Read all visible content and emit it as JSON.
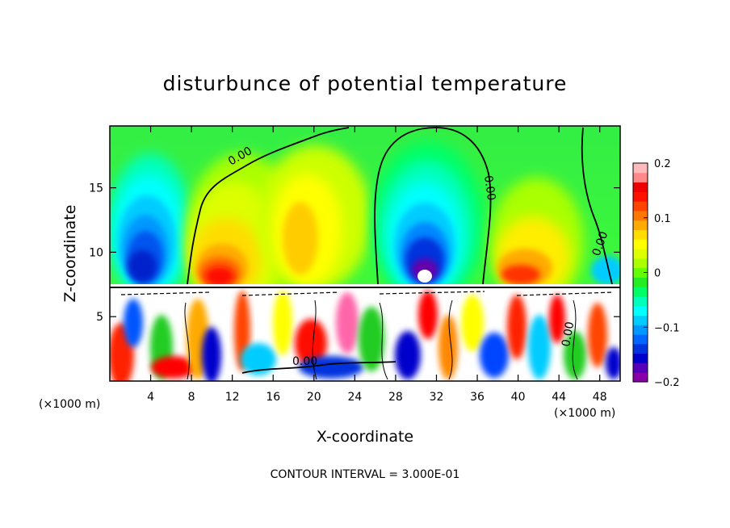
{
  "chart_data": {
    "type": "contour",
    "title": "disturbunce of potential temperature",
    "xlabel": "X-coordinate",
    "ylabel": "Z-coordinate",
    "x_unit": "(×1000 m)",
    "x_unit_right": "(×1000 m)",
    "xlim": [
      0,
      50
    ],
    "ylim": [
      0,
      19.8
    ],
    "x_ticks": [
      4,
      8,
      12,
      16,
      20,
      24,
      28,
      32,
      36,
      40,
      44,
      48
    ],
    "y_ticks": [
      5,
      10,
      15
    ],
    "x_tick_labels": [
      "4",
      "8",
      "12",
      "16",
      "20",
      "24",
      "28",
      "32",
      "36",
      "40",
      "44",
      "48"
    ],
    "y_tick_labels": [
      "5",
      "10",
      "15"
    ],
    "colorbar": {
      "min": -0.2,
      "max": 0.2,
      "ticks": [
        0.2,
        0.1,
        0,
        -0.1,
        -0.2
      ],
      "tick_labels": [
        "0.2",
        "0.1",
        "0",
        "−0.1",
        "−0.2"
      ],
      "colors": [
        "#8800aa",
        "#5500bb",
        "#0000cc",
        "#0033dd",
        "#0066ff",
        "#0099ff",
        "#00ccff",
        "#00ffff",
        "#00ffbb",
        "#00ff66",
        "#22ee22",
        "#66ff00",
        "#aaff00",
        "#ddff00",
        "#ffff00",
        "#ffdd00",
        "#ffaa00",
        "#ff7700",
        "#ff4400",
        "#ff1100",
        "#ee0000",
        "#ff8888",
        "#ffbbbb"
      ]
    },
    "contour_labels": [
      "0.00",
      "0.00",
      "0.00",
      "0.00",
      "0.00"
    ],
    "features": [
      {
        "kind": "cold-dome",
        "x_center": 5,
        "z_center": 11,
        "z_top": 17
      },
      {
        "kind": "warm-plume",
        "x_center": 12,
        "z_center": 11,
        "z_top": 18
      },
      {
        "kind": "warm-plume",
        "x_center": 19,
        "z_center": 13,
        "z_top": 18
      },
      {
        "kind": "cold-dome",
        "x_center": 30.5,
        "z_center": 11,
        "z_top": 17
      },
      {
        "kind": "warm-plume",
        "x_center": 41,
        "z_center": 10,
        "z_top": 16
      },
      {
        "kind": "turbulent-layer",
        "z_bottom": 0,
        "z_top": 7.5
      }
    ],
    "contour_interval_label": "CONTOUR INTERVAL = 3.000E-01"
  }
}
